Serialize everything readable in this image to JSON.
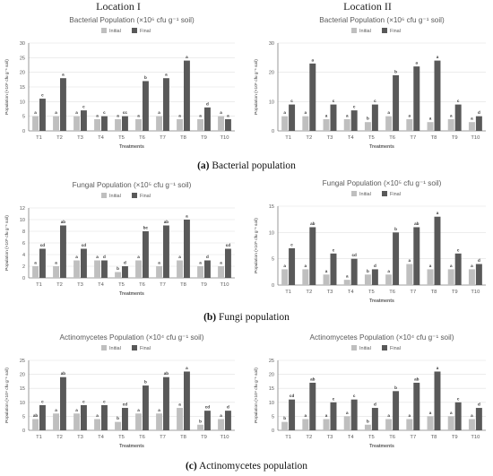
{
  "headers": {
    "location1": "Location I",
    "location2": "Location II"
  },
  "captions": [
    {
      "letter": "(a)",
      "text": " Bacterial population"
    },
    {
      "letter": "(b)",
      "text": " Fungi population"
    },
    {
      "letter": "(c)",
      "text": " Actinomycetes population"
    }
  ],
  "colors": {
    "initial": "#bfbfbf",
    "final": "#595959",
    "axis": "#7f7f7f",
    "grid": "#e0e0e0",
    "text": "#595959"
  },
  "chart_data": [
    {
      "type": "bar",
      "title": "Bacterial Population (×10⁶ cfu g⁻¹ soil)",
      "xlabel": "Treatments",
      "ylabel": "Population (×10⁶ cfu g⁻¹ soil)",
      "ylim": [
        0,
        30
      ],
      "yticks": [
        0,
        5,
        10,
        15,
        20,
        25,
        30
      ],
      "legend": "top-center",
      "categories": [
        "T1",
        "T2",
        "T3",
        "T4",
        "T5",
        "T6",
        "T7",
        "T8",
        "T9",
        "T10"
      ],
      "series": [
        {
          "name": "Initial",
          "values": [
            5,
            5,
            5,
            4,
            4,
            4,
            5,
            4,
            4,
            5
          ],
          "letters": [
            "a",
            "a",
            "a",
            "a",
            "a",
            "a",
            "a",
            "a",
            "a",
            "a"
          ]
        },
        {
          "name": "Final",
          "values": [
            11,
            18,
            7,
            5,
            5,
            17,
            18,
            24,
            8,
            4
          ],
          "letters": [
            "c",
            "a",
            "c",
            "c",
            "cc",
            "b",
            "a",
            "a",
            "d",
            "a"
          ]
        }
      ]
    },
    {
      "type": "bar",
      "title": "Bacterial Population (×10⁶ cfu g⁻¹ soil)",
      "xlabel": "Treatments",
      "ylabel": "Population (×10⁶ cfu g⁻¹ soil)",
      "ylim": [
        0,
        30
      ],
      "yticks": [
        0,
        10,
        20,
        30
      ],
      "legend": "top-center",
      "categories": [
        "T1",
        "T2",
        "T3",
        "T4",
        "T5",
        "T6",
        "T7",
        "T8",
        "T9",
        "T10"
      ],
      "series": [
        {
          "name": "Initial",
          "values": [
            5,
            5,
            4,
            4,
            3,
            5,
            4,
            3,
            4,
            3
          ],
          "letters": [
            "a",
            "a",
            "a",
            "a",
            "b",
            "a",
            "a",
            "a",
            "a",
            "a"
          ]
        },
        {
          "name": "Final",
          "values": [
            9,
            23,
            9,
            7,
            9,
            19,
            22,
            24,
            9,
            5
          ],
          "letters": [
            "c",
            "a",
            "c",
            "c",
            "c",
            "b",
            "a",
            "a",
            "c",
            "d"
          ]
        }
      ]
    },
    {
      "type": "bar",
      "title": "Fungal Population (×10⁵ cfu g⁻¹ soil)",
      "xlabel": "Treatments",
      "ylabel": "Population (×10⁵ cfu g⁻¹ soil)",
      "ylim": [
        0,
        12
      ],
      "yticks": [
        0,
        2,
        4,
        6,
        8,
        10,
        12
      ],
      "legend": "top-center",
      "categories": [
        "T1",
        "T2",
        "T3",
        "T4",
        "T5",
        "T6",
        "T7",
        "T8",
        "T9",
        "T10"
      ],
      "series": [
        {
          "name": "Initial",
          "values": [
            2,
            2,
            3,
            3,
            1,
            3,
            2,
            3,
            2,
            2
          ],
          "letters": [
            "a",
            "a",
            "a",
            "a",
            "b",
            "a",
            "a",
            "a",
            "a",
            "a"
          ]
        },
        {
          "name": "Final",
          "values": [
            5,
            9,
            5,
            3,
            2,
            8,
            9,
            10,
            3,
            5
          ],
          "letters": [
            "cd",
            "ab",
            "cd",
            "d",
            "d",
            "bc",
            "ab",
            "a",
            "d",
            "cd"
          ]
        }
      ]
    },
    {
      "type": "bar",
      "title": "Fungal Population (×10⁵ cfu g⁻¹ soil)",
      "xlabel": "Treatments",
      "ylabel": "Population (×10⁵ cfu g⁻¹ soil)",
      "ylim": [
        0,
        15
      ],
      "yticks": [
        0,
        5,
        10,
        15
      ],
      "legend": "top-center",
      "categories": [
        "T1",
        "T2",
        "T3",
        "T4",
        "T5",
        "T6",
        "T7",
        "T8",
        "T9",
        "T10"
      ],
      "series": [
        {
          "name": "Initial",
          "values": [
            3,
            3,
            2,
            1,
            2,
            2,
            4,
            3,
            3,
            3
          ],
          "letters": [
            "a",
            "a",
            "a",
            "a",
            "b",
            "a",
            "a",
            "a",
            "a",
            "a"
          ]
        },
        {
          "name": "Final",
          "values": [
            7,
            11,
            6,
            5,
            3,
            10,
            11,
            13,
            6,
            4
          ],
          "letters": [
            "c",
            "ab",
            "c",
            "cd",
            "d",
            "b",
            "ab",
            "a",
            "c",
            "d"
          ]
        }
      ]
    },
    {
      "type": "bar",
      "title": "Actinomycetes Population (×10⁴ cfu g⁻¹ soil)",
      "xlabel": "Treatments",
      "ylabel": "Population (×10⁴ cfu g⁻¹ soil)",
      "ylim": [
        0,
        25
      ],
      "yticks": [
        0,
        5,
        10,
        15,
        20,
        25
      ],
      "legend": "top-center",
      "categories": [
        "T1",
        "T2",
        "T3",
        "T4",
        "T5",
        "T6",
        "T7",
        "T8",
        "T9",
        "T10"
      ],
      "series": [
        {
          "name": "Initial",
          "values": [
            4,
            6,
            6,
            4,
            3,
            6,
            6,
            8,
            2,
            4
          ],
          "letters": [
            "ab",
            "a",
            "a",
            "a",
            "b",
            "a",
            "a",
            "a",
            "b",
            "a"
          ]
        },
        {
          "name": "Final",
          "values": [
            9,
            19,
            9,
            9,
            8,
            16,
            19,
            21,
            7,
            7
          ],
          "letters": [
            "c",
            "ab",
            "c",
            "c",
            "cd",
            "b",
            "ab",
            "a",
            "cd",
            "d"
          ]
        }
      ]
    },
    {
      "type": "bar",
      "title": "Actinomycetes Population (×10⁴ cfu g⁻¹ soil)",
      "xlabel": "Treatments",
      "ylabel": "Population (×10⁴ cfu g⁻¹ soil)",
      "ylim": [
        0,
        25
      ],
      "yticks": [
        0,
        5,
        10,
        15,
        20,
        25
      ],
      "legend": "top-center",
      "categories": [
        "T1",
        "T2",
        "T3",
        "T4",
        "T5",
        "T6",
        "T7",
        "T8",
        "T9",
        "T10"
      ],
      "series": [
        {
          "name": "Initial",
          "values": [
            3,
            4,
            4,
            5,
            2,
            4,
            4,
            5,
            5,
            4
          ],
          "letters": [
            "b",
            "a",
            "a",
            "a",
            "b",
            "a",
            "a",
            "a",
            "a",
            "a"
          ]
        },
        {
          "name": "Final",
          "values": [
            11,
            17,
            10,
            11,
            8,
            14,
            17,
            21,
            10,
            8
          ],
          "letters": [
            "cd",
            "ab",
            "c",
            "c",
            "d",
            "b",
            "ab",
            "a",
            "c",
            "d"
          ]
        }
      ]
    }
  ]
}
